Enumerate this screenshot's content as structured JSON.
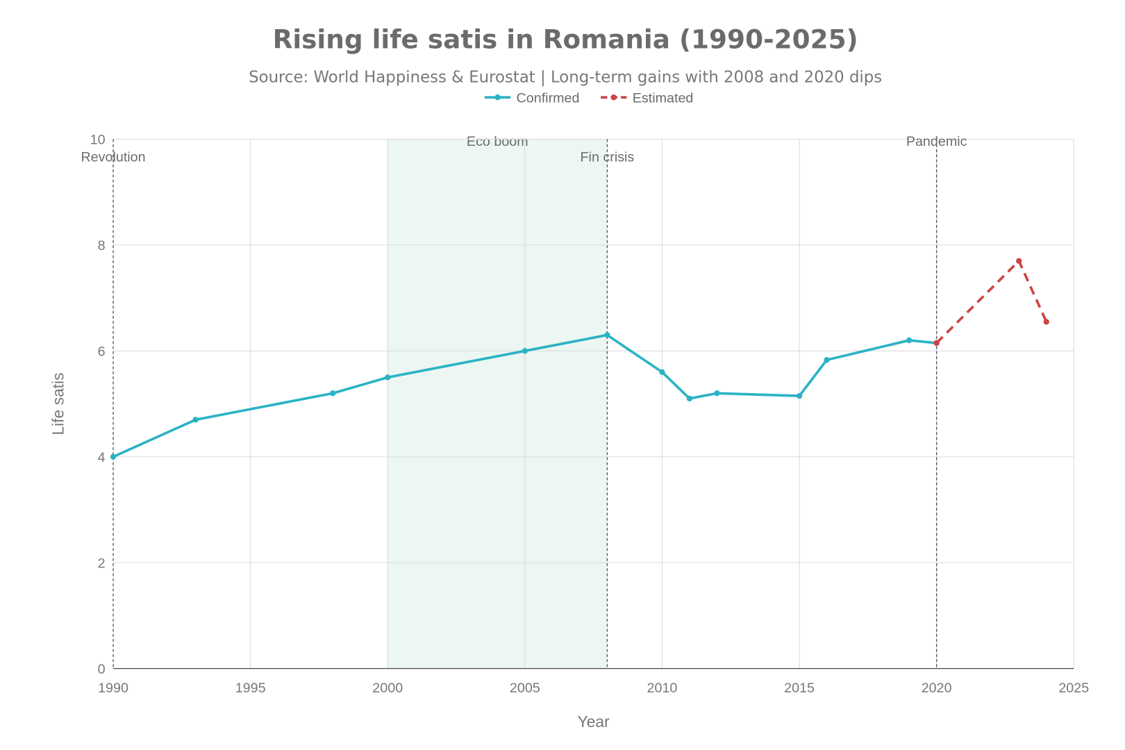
{
  "chart_data": {
    "type": "line",
    "title": "Rising life satis in Romania (1990-2025)",
    "subtitle": "Source: World Happiness & Eurostat | Long-term gains with 2008 and 2020 dips",
    "xlabel": "Year",
    "ylabel": "Life satis",
    "xlim": [
      1990,
      2025
    ],
    "ylim": [
      0,
      10
    ],
    "xticks": [
      1990,
      1995,
      2000,
      2005,
      2010,
      2015,
      2020,
      2025
    ],
    "yticks": [
      0,
      2,
      4,
      6,
      8,
      10
    ],
    "grid": true,
    "legend_placement": "top-center",
    "series": [
      {
        "name": "Confirmed",
        "color": "#2bb3c4",
        "style": "solid",
        "x": [
          1990,
          1993,
          1998,
          2000,
          2005,
          2008,
          2010,
          2011,
          2012,
          2015,
          2016,
          2019,
          2020
        ],
        "y": [
          4.0,
          4.7,
          5.2,
          5.5,
          6.0,
          6.3,
          5.6,
          5.1,
          5.2,
          5.15,
          5.83,
          6.2,
          6.15
        ]
      },
      {
        "name": "Estimated",
        "color": "#cc4444",
        "style": "dashed",
        "x": [
          2020,
          2023,
          2024
        ],
        "y": [
          6.15,
          7.7,
          6.55
        ]
      }
    ],
    "shaded_regions": [
      {
        "label": "Eco boom",
        "x0": 2000,
        "x1": 2008,
        "color": "#e6f3ed"
      }
    ],
    "event_lines": [
      {
        "label": "Revolution",
        "x": 1990
      },
      {
        "label": "Fin crisis",
        "x": 2008
      },
      {
        "label": "Pandemic",
        "x": 2020
      }
    ]
  }
}
